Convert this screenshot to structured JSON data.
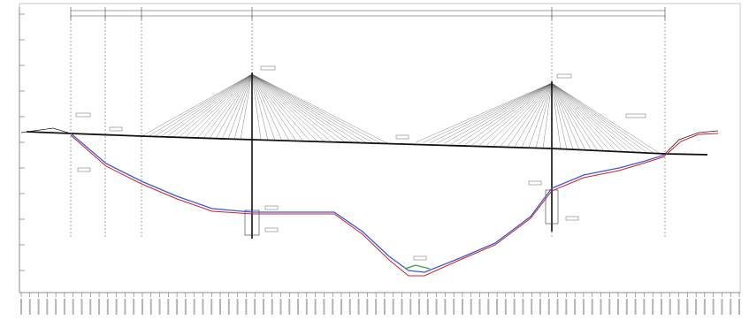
{
  "title": "",
  "colors": {
    "deck": "#111111",
    "cables": "#555555",
    "ground_red": "#d0202a",
    "ground_blue": "#3b5bd6",
    "ground_green": "#3a9a4a",
    "grid": "#cccccc",
    "guide": "#444444"
  },
  "top_dimension": {
    "overall_label": "",
    "spans": [
      "",
      "",
      "",
      "",
      "",
      ""
    ]
  },
  "supports": [
    {
      "id": "S1",
      "label": ""
    },
    {
      "id": "S2",
      "label": ""
    },
    {
      "id": "S3",
      "label": ""
    },
    {
      "id": "P1",
      "label": ""
    },
    {
      "id": "P2",
      "label": ""
    },
    {
      "id": "S4",
      "label": ""
    }
  ],
  "elevation_ticks": [
    "",
    "",
    "",
    "",
    "",
    "",
    "",
    "",
    "",
    "",
    ""
  ],
  "station_ticks_count": 84,
  "annotations": {
    "midspan_label": "",
    "riverbed_label": ""
  }
}
